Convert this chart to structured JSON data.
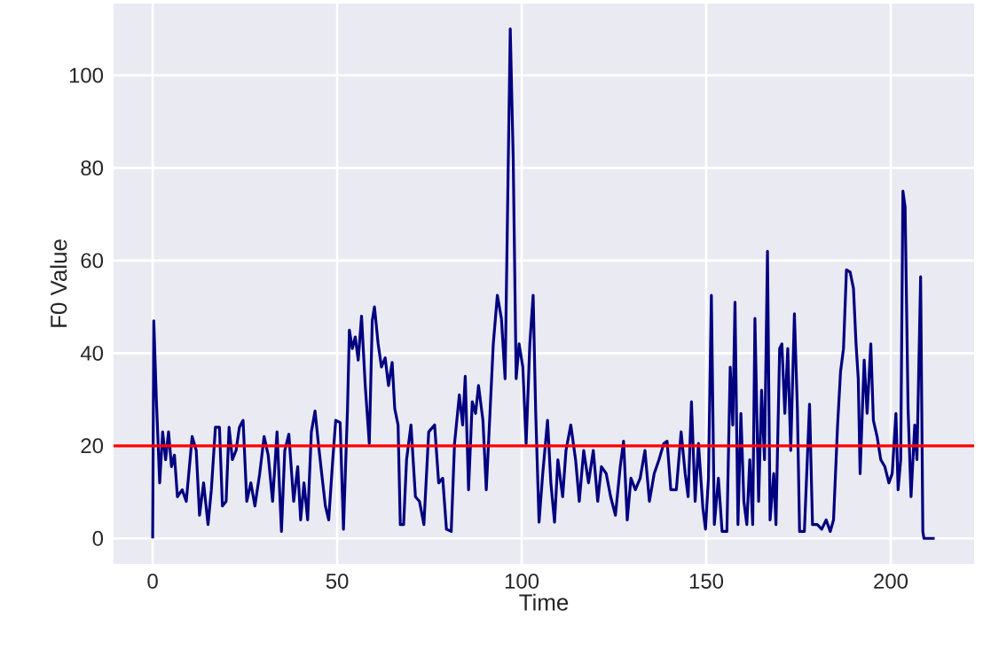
{
  "chart_data": {
    "type": "line",
    "xlabel": "Time",
    "ylabel": "F0 Value",
    "xlim": [
      -10.6,
      222.6
    ],
    "ylim": [
      -5.5,
      115.5
    ],
    "xticks": [
      0,
      50,
      100,
      150,
      200
    ],
    "yticks": [
      0,
      20,
      40,
      60,
      80,
      100
    ],
    "grid": true,
    "line_style": "solid",
    "marker": "none",
    "ref_lines": [
      {
        "axis": "y",
        "value": 20,
        "color": "#ff0000"
      }
    ],
    "series": [
      {
        "color": "#000080",
        "x": [
          0,
          0.3,
          1,
          1.9,
          2.7,
          3.5,
          4.3,
          5.1,
          5.9,
          6.7,
          8,
          9.1,
          10.7,
          11.8,
          12.7,
          13.8,
          15,
          15.9,
          17,
          18.1,
          18.9,
          19.9,
          20.7,
          21.6,
          22.6,
          23.5,
          24.5,
          25.5,
          26.6,
          27.7,
          29,
          30.2,
          31.3,
          32.5,
          33.7,
          34.9,
          35.8,
          36.9,
          38.2,
          39.3,
          40.1,
          41,
          42,
          43,
          44,
          44.9,
          45.8,
          46.8,
          47.7,
          48.8,
          49.6,
          50.8,
          51.7,
          52.8,
          53.3,
          54.1,
          54.9,
          55.7,
          56.6,
          57.6,
          58.7,
          59.5,
          60.1,
          61.1,
          62,
          63,
          63.9,
          64.9,
          65.6,
          66.5,
          67.1,
          68,
          68.8,
          70,
          71.2,
          72.3,
          73.5,
          74.8,
          76.4,
          77.5,
          78.6,
          79.6,
          80.9,
          81.8,
          83.1,
          84,
          84.7,
          85.6,
          86.6,
          87.5,
          88.3,
          89.5,
          90.4,
          91.4,
          92.3,
          93.4,
          94.5,
          95.5,
          96.3,
          96.9,
          97.7,
          98.5,
          99.3,
          100.3,
          101.2,
          102.2,
          103.1,
          103.8,
          104.7,
          105.7,
          107,
          107.9,
          108.9,
          109.8,
          111.1,
          112,
          113.3,
          114.6,
          115.6,
          116.8,
          118.1,
          119.4,
          120.6,
          121.6,
          122.9,
          124.1,
          125.4,
          126.7,
          127.6,
          128.6,
          129.6,
          130.8,
          132.1,
          133.4,
          134.6,
          135.9,
          137.2,
          138.5,
          139.4,
          140.4,
          141.9,
          143.2,
          144.3,
          145.1,
          146,
          147,
          147.9,
          149.1,
          149.8,
          150.6,
          151.4,
          152.2,
          153.3,
          154.3,
          155.6,
          156.5,
          157.2,
          157.8,
          158.6,
          159.4,
          160.2,
          161,
          161.8,
          162.6,
          163.2,
          164.2,
          165,
          165.8,
          166.6,
          167.3,
          168.3,
          168.9,
          169.9,
          170.5,
          171.3,
          172.1,
          172.9,
          173.9,
          174.7,
          175.3,
          176.6,
          178,
          178.8,
          180.1,
          181.3,
          182.5,
          183.6,
          184.5,
          185.6,
          186.4,
          187.2,
          188,
          189,
          189.9,
          190.6,
          191.2,
          191.7,
          192.8,
          193.6,
          194.6,
          195.3,
          196.3,
          197.3,
          198.4,
          199.5,
          200.4,
          201.4,
          202,
          202.7,
          203.3,
          203.9,
          204.7,
          205.5,
          206.5,
          207.1,
          208.1,
          208.7,
          209,
          211.9
        ],
        "values": [
          0,
          47,
          30,
          12,
          23,
          17,
          23,
          15.5,
          18,
          9,
          10.5,
          8,
          22,
          19,
          5,
          12,
          3,
          10.5,
          24,
          24,
          7,
          8,
          24,
          17,
          19,
          24,
          25.5,
          8,
          12,
          7,
          14,
          22,
          18,
          8,
          23,
          1.5,
          19,
          22.5,
          8,
          15.5,
          4,
          12,
          4,
          23,
          27.5,
          20.5,
          14,
          7,
          4,
          17,
          25.5,
          25,
          2,
          28,
          45,
          41,
          43.5,
          38.5,
          48,
          33,
          20.5,
          47,
          50,
          42,
          37,
          39,
          33,
          38,
          28,
          24.5,
          3,
          3,
          17,
          24.5,
          9,
          8,
          3,
          23,
          24.5,
          12,
          13,
          2,
          1.5,
          20.5,
          31,
          24.5,
          35,
          10.5,
          29.5,
          27,
          33,
          25.5,
          10.5,
          27,
          42,
          52.5,
          47.5,
          34.5,
          78,
          110,
          82,
          34.5,
          42,
          37,
          20.5,
          42,
          52.5,
          27,
          3.5,
          14,
          25.5,
          12,
          3.5,
          17,
          9,
          19,
          24.5,
          17,
          8,
          19,
          12,
          19,
          8,
          15.5,
          14,
          9,
          5,
          15.5,
          21,
          4,
          13,
          10.5,
          13,
          19,
          8,
          14,
          17,
          20.5,
          21,
          10.5,
          10.5,
          23,
          14,
          9,
          29.5,
          8,
          20.5,
          6.5,
          2,
          13,
          52.5,
          3,
          13,
          1.5,
          1.5,
          37,
          24.5,
          51,
          3,
          27,
          8,
          3,
          17,
          3,
          47.5,
          8,
          32,
          17,
          62,
          4,
          14,
          3,
          41,
          42,
          27,
          41,
          19,
          48.5,
          28,
          1.5,
          1.5,
          29,
          3,
          3,
          2,
          4,
          1.5,
          4,
          24.5,
          36,
          41,
          58,
          57.5,
          54,
          42,
          34.5,
          14,
          38.5,
          27,
          42,
          25.5,
          22,
          17,
          15.5,
          12,
          14,
          27,
          10.5,
          17,
          75,
          71.5,
          28,
          9,
          24.5,
          17,
          56.5,
          1.5,
          0,
          0
        ]
      }
    ]
  }
}
